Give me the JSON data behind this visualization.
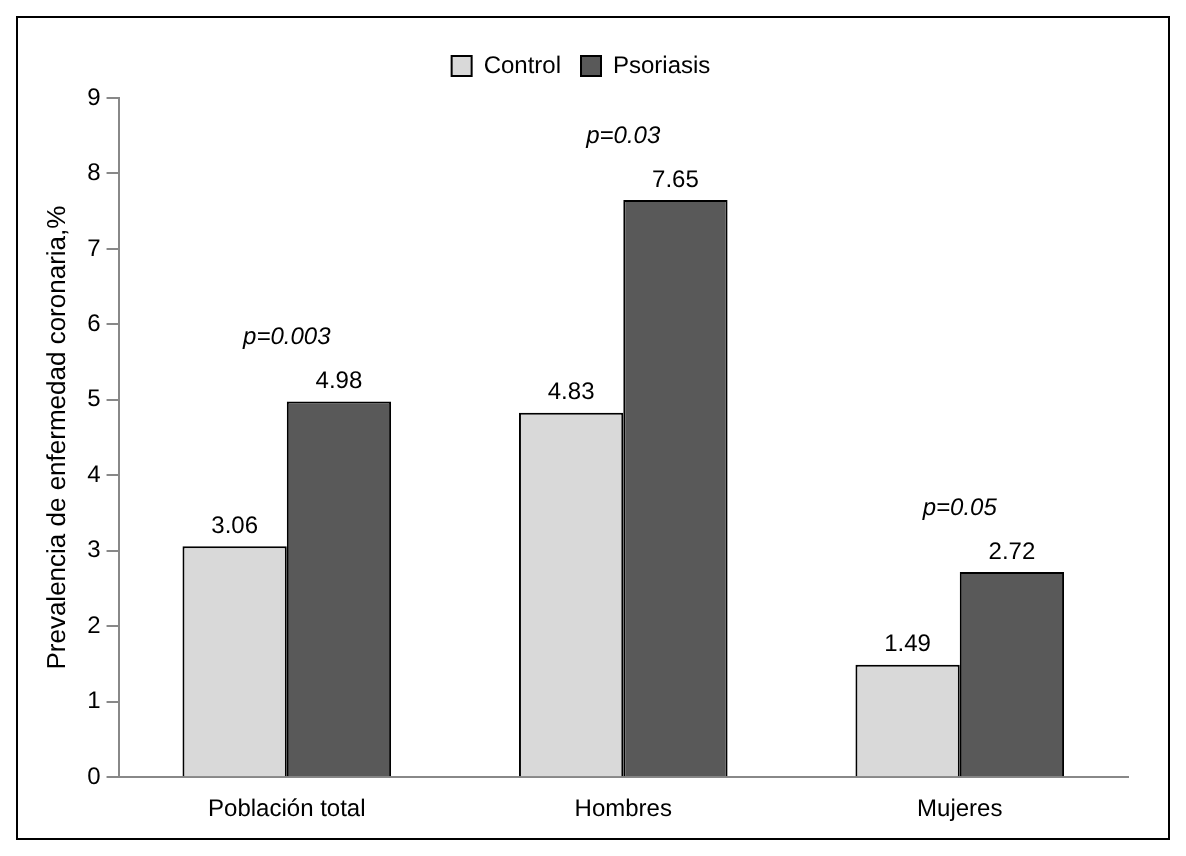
{
  "chart_data": {
    "type": "bar",
    "ylabel": "Prevalencia de enfermedad coronaria,%",
    "categories": [
      "Población total",
      "Hombres",
      "Mujeres"
    ],
    "series": [
      {
        "name": "Control",
        "color": "#d9d9d9",
        "values": [
          3.06,
          4.83,
          1.49
        ]
      },
      {
        "name": "Psoriasis",
        "color": "#595959",
        "values": [
          4.98,
          7.65,
          2.72
        ]
      }
    ],
    "ylim": [
      0,
      9
    ],
    "yticks": [
      0,
      1,
      2,
      3,
      4,
      5,
      6,
      7,
      8,
      9
    ],
    "grid": false,
    "legend": "top",
    "data_labels": true,
    "annotations": [
      "p=0.003",
      "p=0.03",
      "p=0.05"
    ]
  }
}
